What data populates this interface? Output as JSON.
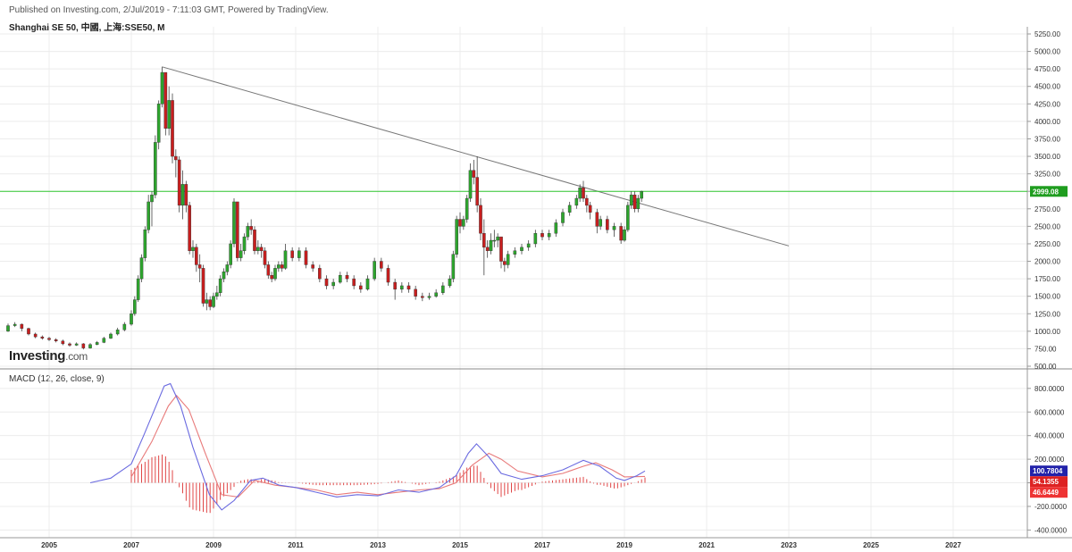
{
  "header": {
    "published": "Published on Investing.com, 2/Jul/2019 - 7:11:03 GMT, Powered by TradingView.",
    "title": "Shanghai SE 50, 中國, 上海:SSE50, M"
  },
  "logo": {
    "main": "Investing",
    "suffix": ".com"
  },
  "colors": {
    "up": "#2da52d",
    "down": "#c81e1e",
    "macd_line": "#6a6ae0",
    "signal_line": "#e87a7a",
    "hist": "#d33",
    "hline": "#32c832",
    "trend": "#777777",
    "price_tag": "#1f9d1f",
    "macd_tag": "#2222aa",
    "signal_tag": "#dd2222",
    "hist_tag": "#ee3333"
  },
  "chart_data": [
    {
      "type": "candlestick",
      "title": "Shanghai SE 50, 中國, 上海:SSE50, M",
      "ylim": [
        500,
        5250
      ],
      "yticks": [
        "5250.00",
        "5000.00",
        "4750.00",
        "4500.00",
        "4250.00",
        "4000.00",
        "3750.00",
        "3500.00",
        "3250.00",
        "3000.00",
        "2750.00",
        "2500.00",
        "2250.00",
        "2000.00",
        "1750.00",
        "1500.00",
        "1250.00",
        "1000.00",
        "750.00",
        "500.00"
      ],
      "xticks": [
        "2005",
        "2007",
        "2009",
        "2011",
        "2013",
        "2015",
        "2017",
        "2019",
        "2021",
        "2023",
        "2025",
        "2027"
      ],
      "last_price_label": "2999.08",
      "last_price": 2999.08,
      "trendline": {
        "from": [
          "2007-10",
          4780
        ],
        "to": [
          "2023-01",
          2220
        ]
      },
      "candles": [
        [
          "2004-01",
          1000,
          1080,
          1110,
          990
        ],
        [
          "2004-03",
          1080,
          1100,
          1130,
          1060
        ],
        [
          "2004-05",
          1100,
          1040,
          1110,
          1000
        ],
        [
          "2004-07",
          1040,
          960,
          1050,
          940
        ],
        [
          "2004-09",
          960,
          920,
          980,
          900
        ],
        [
          "2004-11",
          920,
          900,
          940,
          880
        ],
        [
          "2005-01",
          900,
          880,
          920,
          860
        ],
        [
          "2005-03",
          880,
          860,
          900,
          840
        ],
        [
          "2005-05",
          860,
          820,
          880,
          800
        ],
        [
          "2005-07",
          820,
          800,
          840,
          780
        ],
        [
          "2005-09",
          800,
          820,
          840,
          790
        ],
        [
          "2005-11",
          820,
          760,
          830,
          740
        ],
        [
          "2006-01",
          760,
          810,
          830,
          750
        ],
        [
          "2006-03",
          810,
          840,
          860,
          800
        ],
        [
          "2006-05",
          840,
          900,
          920,
          830
        ],
        [
          "2006-07",
          900,
          960,
          980,
          890
        ],
        [
          "2006-09",
          960,
          1020,
          1050,
          940
        ],
        [
          "2006-11",
          1020,
          1100,
          1130,
          1000
        ],
        [
          "2007-01",
          1100,
          1250,
          1300,
          1080
        ],
        [
          "2007-02",
          1250,
          1450,
          1500,
          1220
        ],
        [
          "2007-03",
          1450,
          1750,
          1800,
          1420
        ],
        [
          "2007-04",
          1750,
          2050,
          2100,
          1700
        ],
        [
          "2007-05",
          2050,
          2450,
          2500,
          2000
        ],
        [
          "2007-06",
          2450,
          2850,
          2950,
          2400
        ],
        [
          "2007-07",
          2850,
          2950,
          3000,
          2500
        ],
        [
          "2007-08",
          2950,
          3700,
          3800,
          2900
        ],
        [
          "2007-09",
          3700,
          4250,
          4300,
          3600
        ],
        [
          "2007-10",
          4250,
          4700,
          4780,
          4200
        ],
        [
          "2007-11",
          4700,
          3900,
          4700,
          3800
        ],
        [
          "2007-12",
          3900,
          4300,
          4500,
          3800
        ],
        [
          "2008-01",
          4300,
          3500,
          4400,
          3400
        ],
        [
          "2008-02",
          3500,
          3450,
          3600,
          3200
        ],
        [
          "2008-03",
          3450,
          2800,
          3500,
          2700
        ],
        [
          "2008-04",
          2800,
          3100,
          3300,
          2600
        ],
        [
          "2008-05",
          3100,
          2800,
          3150,
          2700
        ],
        [
          "2008-06",
          2800,
          2150,
          2850,
          2100
        ],
        [
          "2008-07",
          2150,
          2200,
          2300,
          2050
        ],
        [
          "2008-08",
          2200,
          1950,
          2250,
          1850
        ],
        [
          "2008-09",
          1950,
          1900,
          2100,
          1700
        ],
        [
          "2008-10",
          1900,
          1400,
          1950,
          1350
        ],
        [
          "2008-11",
          1400,
          1450,
          1550,
          1300
        ],
        [
          "2008-12",
          1450,
          1350,
          1500,
          1300
        ],
        [
          "2009-01",
          1350,
          1500,
          1550,
          1330
        ],
        [
          "2009-02",
          1500,
          1550,
          1650,
          1450
        ],
        [
          "2009-03",
          1550,
          1750,
          1800,
          1500
        ],
        [
          "2009-04",
          1750,
          1850,
          1900,
          1700
        ],
        [
          "2009-05",
          1850,
          1950,
          2000,
          1800
        ],
        [
          "2009-06",
          1950,
          2250,
          2300,
          1900
        ],
        [
          "2009-07",
          2250,
          2850,
          2900,
          2200
        ],
        [
          "2009-08",
          2850,
          2050,
          2850,
          2000
        ],
        [
          "2009-09",
          2050,
          2150,
          2250,
          2000
        ],
        [
          "2009-10",
          2150,
          2350,
          2400,
          2100
        ],
        [
          "2009-11",
          2350,
          2500,
          2550,
          2300
        ],
        [
          "2009-12",
          2500,
          2450,
          2600,
          2380
        ],
        [
          "2010-01",
          2450,
          2150,
          2500,
          2100
        ],
        [
          "2010-02",
          2150,
          2200,
          2300,
          2100
        ],
        [
          "2010-03",
          2200,
          2150,
          2250,
          2050
        ],
        [
          "2010-04",
          2150,
          1950,
          2200,
          1900
        ],
        [
          "2010-05",
          1950,
          1800,
          2000,
          1750
        ],
        [
          "2010-06",
          1800,
          1750,
          1850,
          1700
        ],
        [
          "2010-07",
          1750,
          1900,
          1950,
          1720
        ],
        [
          "2010-08",
          1900,
          1950,
          2000,
          1850
        ],
        [
          "2010-09",
          1950,
          1900,
          2000,
          1850
        ],
        [
          "2010-10",
          1900,
          2150,
          2250,
          1880
        ],
        [
          "2010-12",
          2150,
          2050,
          2200,
          2000
        ],
        [
          "2011-02",
          2050,
          2150,
          2200,
          2000
        ],
        [
          "2011-04",
          2150,
          1950,
          2200,
          1900
        ],
        [
          "2011-06",
          1950,
          1900,
          2000,
          1850
        ],
        [
          "2011-08",
          1900,
          1750,
          1950,
          1700
        ],
        [
          "2011-10",
          1750,
          1650,
          1800,
          1600
        ],
        [
          "2011-12",
          1650,
          1700,
          1750,
          1600
        ],
        [
          "2012-02",
          1700,
          1800,
          1850,
          1680
        ],
        [
          "2012-04",
          1800,
          1750,
          1850,
          1700
        ],
        [
          "2012-06",
          1750,
          1650,
          1800,
          1600
        ],
        [
          "2012-08",
          1650,
          1600,
          1700,
          1550
        ],
        [
          "2012-10",
          1600,
          1750,
          1800,
          1580
        ],
        [
          "2012-12",
          1750,
          2000,
          2050,
          1720
        ],
        [
          "2013-02",
          2000,
          1900,
          2050,
          1850
        ],
        [
          "2013-04",
          1900,
          1700,
          1950,
          1650
        ],
        [
          "2013-06",
          1700,
          1600,
          1750,
          1450
        ],
        [
          "2013-08",
          1600,
          1650,
          1700,
          1550
        ],
        [
          "2013-10",
          1650,
          1600,
          1700,
          1550
        ],
        [
          "2013-12",
          1600,
          1500,
          1650,
          1450
        ],
        [
          "2014-02",
          1500,
          1480,
          1550,
          1430
        ],
        [
          "2014-04",
          1480,
          1500,
          1550,
          1450
        ],
        [
          "2014-06",
          1500,
          1550,
          1600,
          1480
        ],
        [
          "2014-08",
          1550,
          1650,
          1700,
          1520
        ],
        [
          "2014-10",
          1650,
          1750,
          1800,
          1620
        ],
        [
          "2014-11",
          1750,
          2100,
          2150,
          1700
        ],
        [
          "2014-12",
          2100,
          2600,
          2650,
          2050
        ],
        [
          "2015-01",
          2600,
          2500,
          2700,
          2400
        ],
        [
          "2015-02",
          2500,
          2600,
          2650,
          2450
        ],
        [
          "2015-03",
          2600,
          2900,
          2950,
          2550
        ],
        [
          "2015-04",
          2900,
          3300,
          3400,
          2850
        ],
        [
          "2015-05",
          3300,
          3200,
          3450,
          3100
        ],
        [
          "2015-06",
          3200,
          2800,
          3500,
          2700
        ],
        [
          "2015-07",
          2800,
          2400,
          2900,
          2300
        ],
        [
          "2015-08",
          2400,
          2200,
          2600,
          1800
        ],
        [
          "2015-09",
          2200,
          2150,
          2300,
          2050
        ],
        [
          "2015-10",
          2150,
          2300,
          2400,
          2100
        ],
        [
          "2015-11",
          2300,
          2300,
          2450,
          2200
        ],
        [
          "2015-12",
          2300,
          2350,
          2400,
          2200
        ],
        [
          "2016-01",
          2350,
          2000,
          2350,
          1900
        ],
        [
          "2016-02",
          2000,
          1950,
          2050,
          1850
        ],
        [
          "2016-03",
          1950,
          2100,
          2150,
          1900
        ],
        [
          "2016-05",
          2100,
          2150,
          2200,
          2050
        ],
        [
          "2016-07",
          2150,
          2200,
          2250,
          2100
        ],
        [
          "2016-09",
          2200,
          2250,
          2300,
          2150
        ],
        [
          "2016-11",
          2250,
          2400,
          2450,
          2200
        ],
        [
          "2017-01",
          2400,
          2350,
          2450,
          2300
        ],
        [
          "2017-03",
          2350,
          2400,
          2450,
          2300
        ],
        [
          "2017-05",
          2400,
          2550,
          2600,
          2350
        ],
        [
          "2017-07",
          2550,
          2700,
          2750,
          2500
        ],
        [
          "2017-09",
          2700,
          2800,
          2850,
          2650
        ],
        [
          "2017-11",
          2800,
          2900,
          2950,
          2750
        ],
        [
          "2017-12",
          2900,
          3050,
          3100,
          2850
        ],
        [
          "2018-01",
          3050,
          2900,
          3150,
          2850
        ],
        [
          "2018-02",
          2900,
          2800,
          2950,
          2700
        ],
        [
          "2018-03",
          2800,
          2700,
          2850,
          2600
        ],
        [
          "2018-05",
          2700,
          2500,
          2750,
          2400
        ],
        [
          "2018-06",
          2500,
          2600,
          2650,
          2450
        ],
        [
          "2018-08",
          2600,
          2450,
          2650,
          2400
        ],
        [
          "2018-10",
          2450,
          2500,
          2550,
          2350
        ],
        [
          "2018-12",
          2500,
          2300,
          2550,
          2250
        ],
        [
          "2019-01",
          2300,
          2450,
          2500,
          2280
        ],
        [
          "2019-02",
          2450,
          2800,
          2850,
          2420
        ],
        [
          "2019-03",
          2800,
          2950,
          3000,
          2750
        ],
        [
          "2019-04",
          2950,
          2750,
          3000,
          2700
        ],
        [
          "2019-05",
          2750,
          2900,
          2950,
          2700
        ],
        [
          "2019-06",
          2900,
          2999,
          3010,
          2850
        ]
      ]
    },
    {
      "type": "line",
      "title": "MACD (12, 26, close, 9)",
      "ylim": [
        -450,
        950
      ],
      "yticks": [
        "800.0000",
        "600.0000",
        "400.0000",
        "200.0000",
        "0.0000",
        "-200.0000",
        "-400.0000"
      ],
      "tags": [
        "100.7804",
        "54.1355",
        "46.6449"
      ],
      "tag_values": [
        100.7804,
        54.1355,
        46.6449
      ],
      "macd": [
        [
          2006.0,
          0
        ],
        [
          2006.5,
          40
        ],
        [
          2007.0,
          160
        ],
        [
          2007.3,
          400
        ],
        [
          2007.6,
          650
        ],
        [
          2007.8,
          820
        ],
        [
          2007.95,
          840
        ],
        [
          2008.2,
          650
        ],
        [
          2008.5,
          300
        ],
        [
          2008.9,
          -100
        ],
        [
          2009.2,
          -230
        ],
        [
          2009.5,
          -150
        ],
        [
          2009.9,
          20
        ],
        [
          2010.2,
          40
        ],
        [
          2010.6,
          -20
        ],
        [
          2011.0,
          -40
        ],
        [
          2011.5,
          -80
        ],
        [
          2012.0,
          -120
        ],
        [
          2012.5,
          -100
        ],
        [
          2013.0,
          -110
        ],
        [
          2013.5,
          -60
        ],
        [
          2014.0,
          -80
        ],
        [
          2014.5,
          -40
        ],
        [
          2014.9,
          60
        ],
        [
          2015.2,
          250
        ],
        [
          2015.4,
          330
        ],
        [
          2015.7,
          220
        ],
        [
          2016.0,
          80
        ],
        [
          2016.5,
          30
        ],
        [
          2017.0,
          60
        ],
        [
          2017.5,
          110
        ],
        [
          2018.0,
          190
        ],
        [
          2018.4,
          140
        ],
        [
          2018.8,
          40
        ],
        [
          2019.0,
          20
        ],
        [
          2019.3,
          60
        ],
        [
          2019.5,
          100
        ]
      ],
      "signal": [
        [
          2007.0,
          50
        ],
        [
          2007.5,
          350
        ],
        [
          2007.9,
          650
        ],
        [
          2008.1,
          740
        ],
        [
          2008.4,
          620
        ],
        [
          2008.8,
          250
        ],
        [
          2009.2,
          -100
        ],
        [
          2009.6,
          -120
        ],
        [
          2010.0,
          20
        ],
        [
          2010.5,
          -20
        ],
        [
          2011.0,
          -40
        ],
        [
          2011.5,
          -60
        ],
        [
          2012.0,
          -100
        ],
        [
          2012.5,
          -80
        ],
        [
          2013.0,
          -100
        ],
        [
          2013.5,
          -80
        ],
        [
          2014.0,
          -60
        ],
        [
          2014.5,
          -50
        ],
        [
          2014.9,
          0
        ],
        [
          2015.3,
          150
        ],
        [
          2015.7,
          250
        ],
        [
          2016.0,
          200
        ],
        [
          2016.4,
          100
        ],
        [
          2017.0,
          50
        ],
        [
          2017.5,
          80
        ],
        [
          2018.0,
          140
        ],
        [
          2018.3,
          170
        ],
        [
          2018.7,
          110
        ],
        [
          2019.0,
          50
        ],
        [
          2019.5,
          54
        ]
      ]
    }
  ]
}
